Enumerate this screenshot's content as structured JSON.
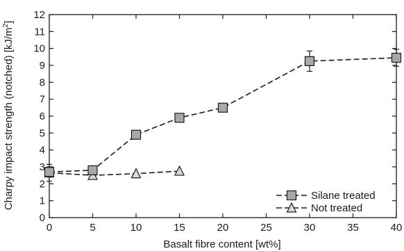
{
  "chart_data": {
    "type": "line",
    "xlabel": "Basalt fibre content [wt%]",
    "ylabel": "Charpy impact strength (notched) [kJ/m",
    "ylabel_superscript": "2",
    "ylabel_suffix": "]",
    "xlim": [
      0,
      40
    ],
    "ylim": [
      0,
      12
    ],
    "xticks": [
      "0",
      "5",
      "10",
      "15",
      "20",
      "25",
      "30",
      "35",
      "40"
    ],
    "yticks": [
      "0",
      "1",
      "2",
      "3",
      "4",
      "5",
      "6",
      "7",
      "8",
      "9",
      "10",
      "11",
      "12"
    ],
    "grid": false,
    "legend_position": "bottom-right",
    "series": [
      {
        "name": "Silane treated",
        "marker": "square",
        "line_style": "dashed",
        "color": "#1a1a1a",
        "marker_fill": "#a8a8a8",
        "x": [
          0,
          5,
          10,
          15,
          20,
          30,
          40
        ],
        "y": [
          2.7,
          2.8,
          4.9,
          5.9,
          6.5,
          9.25,
          9.45
        ],
        "error": [
          0.3,
          0.15,
          0.1,
          0.1,
          0.1,
          0.6,
          0.5
        ]
      },
      {
        "name": "Not treated",
        "marker": "triangle",
        "line_style": "dashed",
        "color": "#1a1a1a",
        "marker_fill": "#d8d8d8",
        "x": [
          0,
          5,
          10,
          15
        ],
        "y": [
          2.65,
          2.5,
          2.6,
          2.75
        ],
        "error": [
          0.5,
          0,
          0,
          0
        ]
      }
    ]
  }
}
